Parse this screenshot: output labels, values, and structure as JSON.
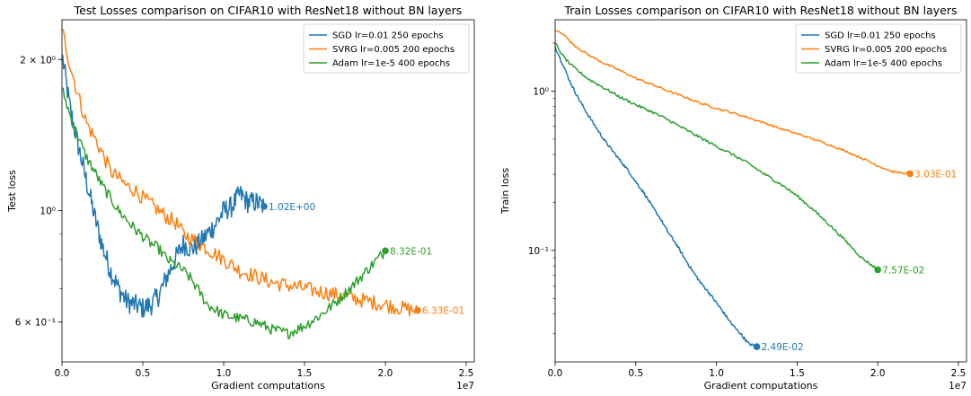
{
  "chart_data": [
    {
      "type": "line",
      "title": "Test Losses comparison on CIFAR10 with ResNet18 without BN layers",
      "xlabel": "Gradient computations",
      "ylabel": "Test loss",
      "x_multiplier_label": "1e7",
      "xlim": [
        0,
        25500000
      ],
      "ylim": [
        0.5,
        2.4
      ],
      "yscale": "log",
      "xticks": [
        {
          "value": 0,
          "label": "0.0"
        },
        {
          "value": 5000000,
          "label": "0.5"
        },
        {
          "value": 10000000,
          "label": "1.0"
        },
        {
          "value": 15000000,
          "label": "1.5"
        },
        {
          "value": 20000000,
          "label": "2.0"
        },
        {
          "value": 25000000,
          "label": "2.5"
        }
      ],
      "yticks": [
        {
          "value": 0.6,
          "label": "6 × 10⁻¹"
        },
        {
          "value": 1.0,
          "label": "10⁰"
        },
        {
          "value": 2.0,
          "label": "2 × 10⁰"
        }
      ],
      "legend_position": "top-right",
      "series": [
        {
          "name": "SGD lr=0.01 250 epochs",
          "color": "#1f77b4",
          "x": [
            0,
            500000,
            1000000,
            1500000,
            2000000,
            2500000,
            3000000,
            3500000,
            4000000,
            4500000,
            5000000,
            5500000,
            6000000,
            6500000,
            7000000,
            7500000,
            8000000,
            8500000,
            9000000,
            9500000,
            10000000,
            10500000,
            11000000,
            11500000,
            12000000,
            12500000
          ],
          "y": [
            2.05,
            1.6,
            1.35,
            1.15,
            0.98,
            0.85,
            0.76,
            0.7,
            0.66,
            0.65,
            0.64,
            0.65,
            0.68,
            0.74,
            0.8,
            0.86,
            0.84,
            0.86,
            0.9,
            0.94,
            1.0,
            1.02,
            1.08,
            1.04,
            1.04,
            1.02
          ],
          "noise": 0.05,
          "end_label": "1.02E+00"
        },
        {
          "name": "SVRG lr=0.005 200 epochs",
          "color": "#ff7f0e",
          "x": [
            0,
            500000,
            1000000,
            1500000,
            2000000,
            2500000,
            3000000,
            3500000,
            4000000,
            4500000,
            5000000,
            5500000,
            6000000,
            6500000,
            7000000,
            7500000,
            8000000,
            8500000,
            9000000,
            10000000,
            11000000,
            12000000,
            13000000,
            14000000,
            15000000,
            16000000,
            17000000,
            18000000,
            19000000,
            20000000,
            21000000,
            22000000
          ],
          "y": [
            2.3,
            1.95,
            1.7,
            1.5,
            1.4,
            1.3,
            1.2,
            1.16,
            1.12,
            1.1,
            1.06,
            1.03,
            1.0,
            0.97,
            0.95,
            0.9,
            0.88,
            0.86,
            0.84,
            0.8,
            0.76,
            0.74,
            0.72,
            0.71,
            0.7,
            0.69,
            0.68,
            0.67,
            0.66,
            0.65,
            0.64,
            0.633
          ],
          "noise": 0.035,
          "end_label": "6.33E-01"
        },
        {
          "name": "Adam lr=1e-5 400 epochs",
          "color": "#2ca02c",
          "x": [
            0,
            500000,
            1000000,
            1500000,
            2000000,
            2500000,
            3000000,
            3500000,
            4000000,
            4500000,
            5000000,
            5500000,
            6000000,
            6500000,
            7000000,
            7500000,
            8000000,
            9000000,
            10000000,
            11000000,
            12000000,
            13000000,
            14000000,
            15000000,
            16000000,
            17000000,
            18000000,
            19000000,
            20000000
          ],
          "y": [
            1.75,
            1.55,
            1.4,
            1.28,
            1.2,
            1.12,
            1.06,
            1.0,
            0.96,
            0.92,
            0.89,
            0.86,
            0.84,
            0.8,
            0.78,
            0.76,
            0.73,
            0.65,
            0.62,
            0.61,
            0.6,
            0.58,
            0.57,
            0.59,
            0.62,
            0.66,
            0.71,
            0.77,
            0.832
          ],
          "noise": 0.025,
          "end_label": "8.32E-01"
        }
      ]
    },
    {
      "type": "line",
      "title": "Train Losses comparison on CIFAR10 with ResNet18 without BN layers",
      "xlabel": "Gradient computations",
      "ylabel": "Train loss",
      "x_multiplier_label": "1e7",
      "xlim": [
        0,
        25500000
      ],
      "ylim": [
        0.02,
        2.8
      ],
      "yscale": "log",
      "xticks": [
        {
          "value": 0,
          "label": "0.0"
        },
        {
          "value": 5000000,
          "label": "0.5"
        },
        {
          "value": 10000000,
          "label": "1.0"
        },
        {
          "value": 15000000,
          "label": "1.5"
        },
        {
          "value": 20000000,
          "label": "2.0"
        },
        {
          "value": 25000000,
          "label": "2.5"
        }
      ],
      "yticks": [
        {
          "value": 0.1,
          "label": "10⁻¹"
        },
        {
          "value": 1.0,
          "label": "10⁰"
        }
      ],
      "legend_position": "top-right",
      "series": [
        {
          "name": "SGD lr=0.01 250 epochs",
          "color": "#1f77b4",
          "x": [
            0,
            500000,
            1000000,
            1500000,
            2000000,
            2500000,
            3000000,
            3500000,
            4000000,
            4500000,
            5000000,
            5500000,
            6000000,
            6500000,
            7000000,
            7500000,
            8000000,
            8500000,
            9000000,
            9500000,
            10000000,
            10500000,
            11000000,
            11500000,
            12000000,
            12500000
          ],
          "y": [
            1.9,
            1.45,
            1.1,
            0.88,
            0.72,
            0.6,
            0.5,
            0.43,
            0.37,
            0.32,
            0.27,
            0.23,
            0.19,
            0.16,
            0.13,
            0.11,
            0.09,
            0.075,
            0.063,
            0.055,
            0.047,
            0.04,
            0.034,
            0.03,
            0.026,
            0.0249
          ],
          "noise": 0.02,
          "end_label": "2.49E-02"
        },
        {
          "name": "SVRG lr=0.005 200 epochs",
          "color": "#ff7f0e",
          "x": [
            0,
            500000,
            1000000,
            2000000,
            3000000,
            4000000,
            5000000,
            6000000,
            7000000,
            8000000,
            9000000,
            10000000,
            11000000,
            12000000,
            13000000,
            14000000,
            15000000,
            16000000,
            17000000,
            18000000,
            19000000,
            20000000,
            21000000,
            22000000
          ],
          "y": [
            2.4,
            2.3,
            2.0,
            1.7,
            1.5,
            1.35,
            1.2,
            1.1,
            1.0,
            0.92,
            0.84,
            0.78,
            0.73,
            0.68,
            0.63,
            0.58,
            0.54,
            0.5,
            0.46,
            0.42,
            0.38,
            0.34,
            0.31,
            0.303
          ],
          "noise": 0.015,
          "end_label": "3.03E-01"
        },
        {
          "name": "Adam lr=1e-5 400 epochs",
          "color": "#2ca02c",
          "x": [
            0,
            500000,
            1000000,
            2000000,
            3000000,
            4000000,
            5000000,
            6000000,
            7000000,
            8000000,
            9000000,
            10000000,
            11000000,
            12000000,
            13000000,
            14000000,
            15000000,
            16000000,
            17000000,
            18000000,
            19000000,
            20000000
          ],
          "y": [
            2.0,
            1.65,
            1.45,
            1.2,
            1.05,
            0.92,
            0.82,
            0.74,
            0.66,
            0.58,
            0.51,
            0.45,
            0.4,
            0.35,
            0.3,
            0.26,
            0.22,
            0.18,
            0.145,
            0.115,
            0.09,
            0.0757
          ],
          "noise": 0.02,
          "end_label": "7.57E-02"
        }
      ]
    }
  ]
}
